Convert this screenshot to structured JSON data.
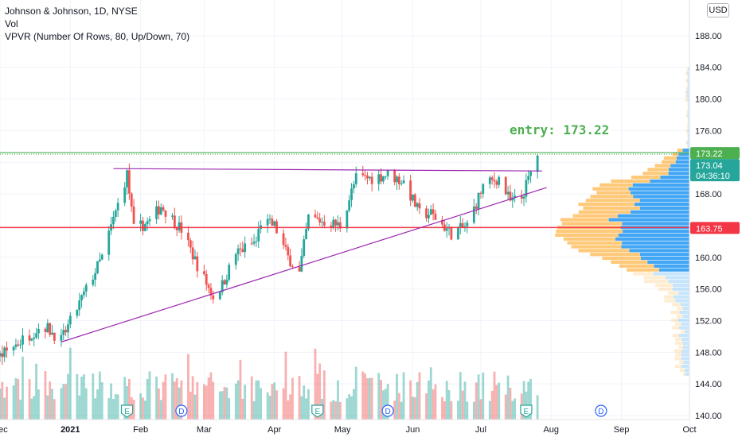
{
  "header": {
    "symbol": "Johnson & Johnson, 1D, NYSE",
    "indicator_vol": "Vol",
    "indicator_vpvr": "VPVR (Number Of Rows, 80, Up/Down, 70)",
    "currency": "USD"
  },
  "annotation": {
    "entry_text": "entry: 173.22"
  },
  "price_tags": {
    "entry": "173.22",
    "last": "173.04",
    "countdown": "04:36:10",
    "support": "163.75"
  },
  "colors": {
    "up": "#26a69a",
    "down": "#ef5350",
    "entry_line": "#4caf50",
    "support_line": "#f23645",
    "trendline": "#9c27b0",
    "vp_up": "#2196f3",
    "vp_down": "#ffb74d"
  },
  "events": [
    {
      "label": "E",
      "date": "2021-01-26"
    },
    {
      "label": "D",
      "date": "2021-02-19"
    },
    {
      "label": "E",
      "date": "2021-04-20"
    },
    {
      "label": "D",
      "date": "2021-05-21"
    },
    {
      "label": "E",
      "date": "2021-07-21"
    },
    {
      "label": "D",
      "date": "2021-08-23"
    }
  ],
  "chart_data": {
    "type": "candlestick",
    "x_axis": {
      "range": [
        "2020-12-01",
        "2021-10-01"
      ],
      "ticks": [
        {
          "label": "Dec",
          "date": "2020-12-01"
        },
        {
          "label": "2021",
          "date": "2021-01-01"
        },
        {
          "label": "Feb",
          "date": "2021-02-01"
        },
        {
          "label": "Mar",
          "date": "2021-03-01"
        },
        {
          "label": "Apr",
          "date": "2021-04-01"
        },
        {
          "label": "May",
          "date": "2021-05-01"
        },
        {
          "label": "Jun",
          "date": "2021-06-01"
        },
        {
          "label": "Jul",
          "date": "2021-07-01"
        },
        {
          "label": "Aug",
          "date": "2021-08-01"
        },
        {
          "label": "Sep",
          "date": "2021-09-01"
        },
        {
          "label": "Oct",
          "date": "2021-10-01"
        }
      ]
    },
    "y_axis": {
      "range": [
        139.5,
        192.5
      ],
      "ticks": [
        "188.00",
        "184.00",
        "180.00",
        "176.00",
        "172.00",
        "168.00",
        "164.00",
        "160.00",
        "156.00",
        "152.00",
        "148.00",
        "144.00",
        "140.00"
      ]
    },
    "horizontal_levels": [
      {
        "name": "entry",
        "value": 173.22
      },
      {
        "name": "support",
        "value": 163.75
      }
    ],
    "trendlines": [
      {
        "from": {
          "date": "2020-12-28",
          "value": 149.3
        },
        "to": {
          "date": "2021-07-30",
          "value": 168.8
        }
      },
      {
        "from": {
          "date": "2021-01-20",
          "value": 171.2
        },
        "to": {
          "date": "2021-07-28",
          "value": 170.9
        }
      }
    ],
    "anchors": [
      {
        "date": "2020-12-01",
        "close": 147.5
      },
      {
        "date": "2020-12-20",
        "close": 151.5
      },
      {
        "date": "2020-12-28",
        "close": 149.5
      },
      {
        "date": "2021-01-15",
        "close": 160.0
      },
      {
        "date": "2021-01-26",
        "close": 170.5
      },
      {
        "date": "2021-01-29",
        "close": 163.5
      },
      {
        "date": "2021-02-05",
        "close": 164.5
      },
      {
        "date": "2021-02-10",
        "close": 166.5
      },
      {
        "date": "2021-02-19",
        "close": 163.5
      },
      {
        "date": "2021-02-26",
        "close": 159.0
      },
      {
        "date": "2021-03-05",
        "close": 155.0
      },
      {
        "date": "2021-03-09",
        "close": 156.5
      },
      {
        "date": "2021-03-15",
        "close": 160.5
      },
      {
        "date": "2021-03-24",
        "close": 162.0
      },
      {
        "date": "2021-03-26",
        "close": 164.5
      },
      {
        "date": "2021-04-01",
        "close": 164.0
      },
      {
        "date": "2021-04-07",
        "close": 160.0
      },
      {
        "date": "2021-04-12",
        "close": 158.0
      },
      {
        "date": "2021-04-16",
        "close": 165.0
      },
      {
        "date": "2021-04-23",
        "close": 164.5
      },
      {
        "date": "2021-04-30",
        "close": 164.0
      },
      {
        "date": "2021-05-07",
        "close": 170.0
      },
      {
        "date": "2021-05-14",
        "close": 170.0
      },
      {
        "date": "2021-05-21",
        "close": 170.5
      },
      {
        "date": "2021-05-28",
        "close": 169.5
      },
      {
        "date": "2021-06-04",
        "close": 165.5
      },
      {
        "date": "2021-06-09",
        "close": 165.5
      },
      {
        "date": "2021-06-18",
        "close": 163.0
      },
      {
        "date": "2021-06-25",
        "close": 164.0
      },
      {
        "date": "2021-07-02",
        "close": 169.0
      },
      {
        "date": "2021-07-09",
        "close": 170.0
      },
      {
        "date": "2021-07-14",
        "close": 167.0
      },
      {
        "date": "2021-07-19",
        "close": 167.5
      },
      {
        "date": "2021-07-26",
        "close": 173.04
      }
    ],
    "volume_profile_range": [
      145.0,
      184.0
    ]
  }
}
